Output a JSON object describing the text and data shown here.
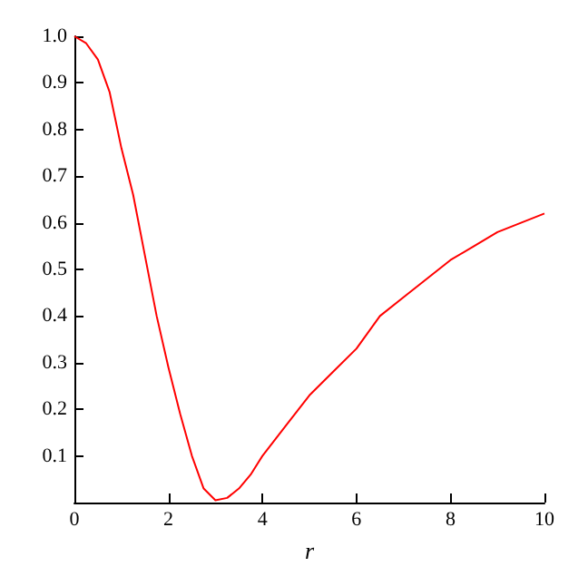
{
  "chart_data": {
    "type": "line",
    "xlabel": "r",
    "x": [
      0,
      0.25,
      0.5,
      0.75,
      1,
      1.25,
      1.5,
      1.75,
      2,
      2.25,
      2.5,
      2.75,
      3,
      3.25,
      3.5,
      3.75,
      4,
      4.5,
      5,
      5.5,
      6,
      6.5,
      7,
      7.5,
      8,
      8.5,
      9,
      9.5,
      10
    ],
    "series": [
      {
        "color": "#ff0000",
        "values": [
          1.0,
          0.985,
          0.95,
          0.88,
          0.76,
          0.66,
          0.53,
          0.4,
          0.29,
          0.19,
          0.1,
          0.03,
          0.005,
          0.01,
          0.03,
          0.06,
          0.1,
          0.165,
          0.23,
          0.28,
          0.33,
          0.4,
          0.44,
          0.48,
          0.52,
          0.55,
          0.58,
          0.6,
          0.62
        ]
      }
    ],
    "xlim": [
      0,
      10
    ],
    "xticks": [
      0,
      2,
      4,
      6,
      8,
      10
    ],
    "ylim": [
      0,
      1
    ],
    "yticks": [
      0.1,
      0.2,
      0.3,
      0.4,
      0.5,
      0.6,
      0.7,
      0.8,
      0.9,
      {
        "value": 1,
        "label": "1.0"
      }
    ],
    "grid": false,
    "marker": "none",
    "line_style": "solid"
  }
}
